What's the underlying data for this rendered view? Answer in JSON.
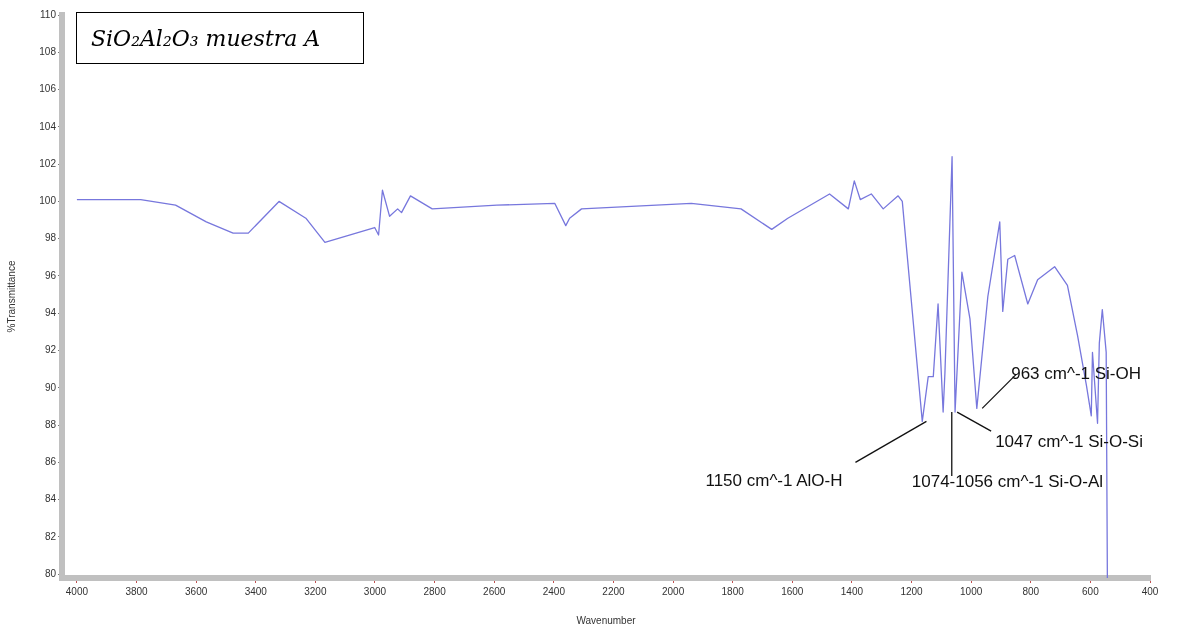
{
  "chart_data": {
    "type": "line",
    "title": "SiO₂Al₂O₃ muestra A",
    "xlabel": "Wavenumber",
    "ylabel": "%Transmittance",
    "xlim": [
      4050,
      400
    ],
    "ylim": [
      79.8,
      110
    ],
    "xticks": [
      4000,
      3800,
      3600,
      3400,
      3200,
      3000,
      2800,
      2600,
      2400,
      2200,
      2000,
      1800,
      1600,
      1400,
      1200,
      1000,
      800,
      600,
      400
    ],
    "yticks": [
      80,
      82,
      84,
      86,
      88,
      90,
      92,
      94,
      96,
      98,
      100,
      102,
      104,
      106,
      108,
      110
    ],
    "grid": false,
    "legend": false,
    "marker": "none",
    "line_style": "solid",
    "series": [
      {
        "color": "#7777dd",
        "x": [
          4000,
          3786,
          3669,
          3566,
          3476,
          3425,
          3322,
          3232,
          3168,
          3001,
          2988,
          2975,
          2951,
          2924,
          2911,
          2881,
          2808,
          2591,
          2397,
          2360,
          2347,
          2307,
          1939,
          1772,
          1669,
          1615,
          1475,
          1412,
          1392,
          1372,
          1335,
          1295,
          1245,
          1231,
          1164,
          1144,
          1127,
          1111,
          1094,
          1088,
          1064,
          1054,
          1031,
          1004,
          981,
          944,
          904,
          894,
          877,
          854,
          810,
          777,
          720,
          677,
          643,
          613,
          597,
          593,
          576,
          570,
          560,
          547,
          543
        ],
        "values": [
          100.1,
          100.1,
          99.8,
          98.9,
          98.3,
          98.3,
          100.0,
          99.1,
          97.8,
          98.6,
          98.2,
          100.6,
          99.2,
          99.6,
          99.4,
          100.3,
          99.6,
          99.8,
          99.9,
          98.7,
          99.1,
          99.6,
          99.9,
          99.6,
          98.5,
          99.1,
          100.4,
          99.6,
          101.1,
          100.1,
          100.4,
          99.6,
          100.3,
          100.0,
          88.2,
          90.6,
          90.6,
          94.5,
          88.7,
          90.8,
          102.4,
          88.7,
          96.2,
          93.7,
          88.9,
          94.9,
          98.9,
          94.1,
          96.9,
          97.1,
          94.5,
          95.8,
          96.5,
          95.5,
          92.8,
          90.1,
          88.5,
          91.9,
          88.1,
          92.4,
          94.2,
          91.9,
          79.8
        ]
      }
    ],
    "annotations": [
      {
        "text": "1150 cm^-1 AlO-H",
        "x": 1150,
        "y": 88.2
      },
      {
        "text": "1074-1056 cm^-1 Si-O-Al",
        "x": 1065,
        "y": 88.7
      },
      {
        "text": "1047 cm^-1 Si-O-Si",
        "x": 1047,
        "y": 88.7
      },
      {
        "text": "963 cm^-1 Si-OH",
        "x": 963,
        "y": 88.9
      }
    ]
  }
}
